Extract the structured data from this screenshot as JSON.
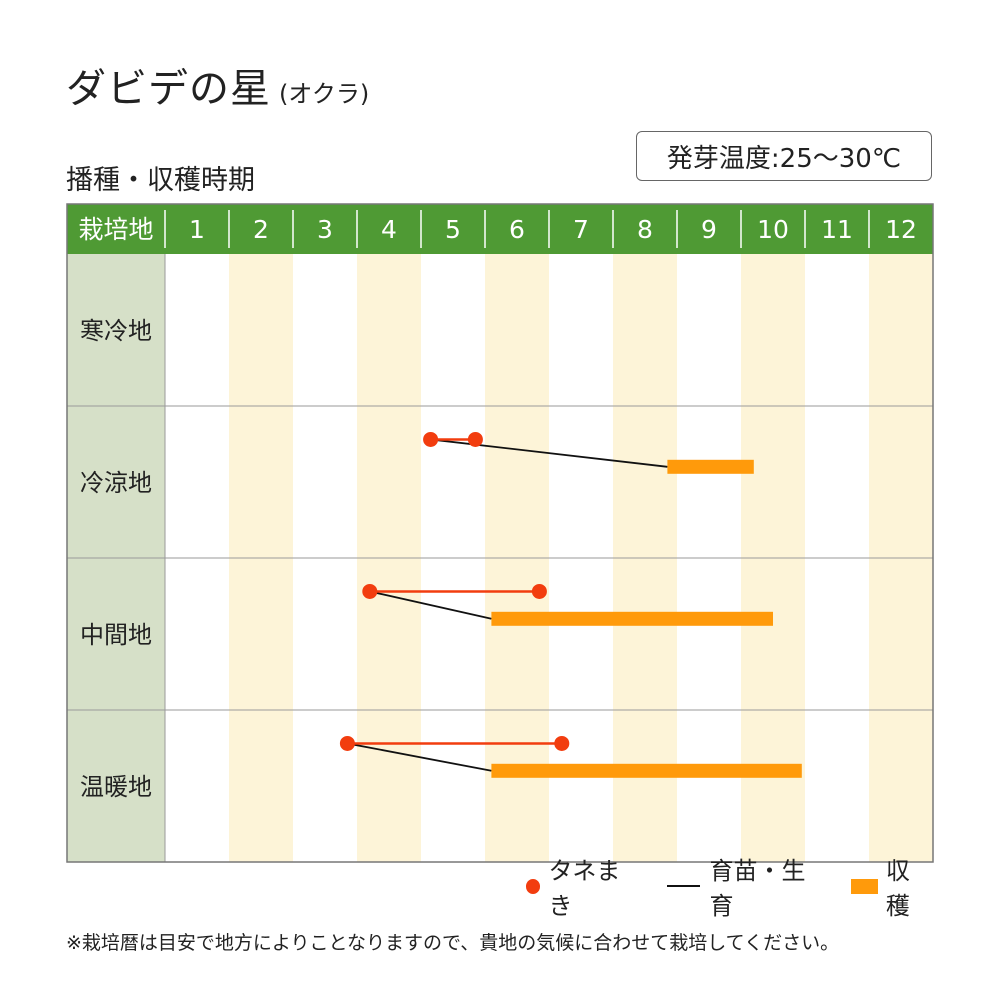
{
  "title": {
    "main": "ダビデの星",
    "sub": "(オクラ)"
  },
  "section_title": "播種・収穫時期",
  "germination_temp": "発芽温度:25〜30℃",
  "colors": {
    "header_bg": "#4f9a34",
    "region_bg": "#d6e0c8",
    "stripe": "#fdf4d8",
    "sowing": "#f23d0f",
    "seedling": "#111111",
    "harvest": "#ff9a0b",
    "grid": "#9a9a9a"
  },
  "chart_data": {
    "type": "table",
    "corner_label": "栽培地",
    "months": [
      "1",
      "2",
      "3",
      "4",
      "5",
      "6",
      "7",
      "8",
      "9",
      "10",
      "11",
      "12"
    ],
    "regions": [
      {
        "name": "寒冷地",
        "sowing": null,
        "harvest": null
      },
      {
        "name": "冷涼地",
        "sowing": [
          5.15,
          5.85
        ],
        "harvest": [
          8.85,
          10.2
        ]
      },
      {
        "name": "中間地",
        "sowing": [
          4.2,
          6.85
        ],
        "harvest": [
          6.1,
          10.5
        ]
      },
      {
        "name": "温暖地",
        "sowing": [
          3.85,
          7.2
        ],
        "harvest": [
          6.1,
          10.95
        ]
      }
    ],
    "legend": [
      {
        "key": "sowing",
        "label": "タネまき",
        "icon": "dot-icon"
      },
      {
        "key": "seedling",
        "label": "育苗・生育",
        "icon": "line-icon"
      },
      {
        "key": "harvest",
        "label": "収穫",
        "icon": "bar-icon"
      }
    ]
  },
  "footnote": "※栽培暦は目安で地方によりことなりますので、貴地の気候に合わせて栽培してください。"
}
